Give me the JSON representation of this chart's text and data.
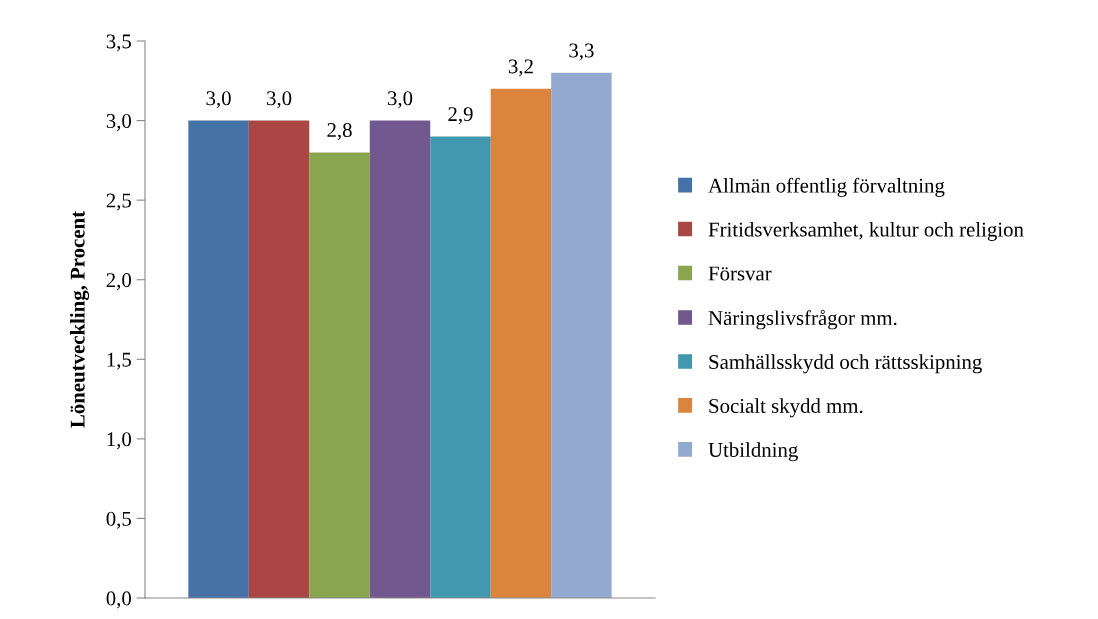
{
  "chart_data": {
    "type": "bar",
    "ylabel": "Löneutveckling, Procent",
    "categories": [
      null
    ],
    "series": [
      {
        "name": "Allmän offentlig förvaltning",
        "color": "#4572a7",
        "values": [
          3.0
        ],
        "value_labels": [
          "3,0"
        ]
      },
      {
        "name": "Fritidsverksamhet, kultur och religion",
        "color": "#aa4643",
        "values": [
          3.0
        ],
        "value_labels": [
          "3,0"
        ]
      },
      {
        "name": "Försvar",
        "color": "#89a54e",
        "values": [
          2.8
        ],
        "value_labels": [
          "2,8"
        ]
      },
      {
        "name": "Näringslivsfrågor mm.",
        "color": "#71588f",
        "values": [
          3.0
        ],
        "value_labels": [
          "3,0"
        ]
      },
      {
        "name": "Samhällsskydd och rättsskipning",
        "color": "#4198af",
        "values": [
          2.9
        ],
        "value_labels": [
          "2,9"
        ]
      },
      {
        "name": "Socialt skydd mm.",
        "color": "#db843d",
        "values": [
          3.2
        ],
        "value_labels": [
          "3,2"
        ]
      },
      {
        "name": "Utbildning",
        "color": "#93a9cf",
        "values": [
          3.3
        ],
        "value_labels": [
          "3,3"
        ]
      }
    ],
    "ylim": [
      0,
      3.5
    ],
    "yticks": [
      {
        "value": 0,
        "label": "0,0"
      },
      {
        "value": 0.5,
        "label": "0,5"
      },
      {
        "value": 1,
        "label": "1,0"
      },
      {
        "value": 1.5,
        "label": "1,5"
      },
      {
        "value": 2,
        "label": "2,0"
      },
      {
        "value": 2.5,
        "label": "2,5"
      },
      {
        "value": 3,
        "label": "3,0"
      },
      {
        "value": 3.5,
        "label": "3,5"
      }
    ],
    "grid": false,
    "legend": "right"
  }
}
